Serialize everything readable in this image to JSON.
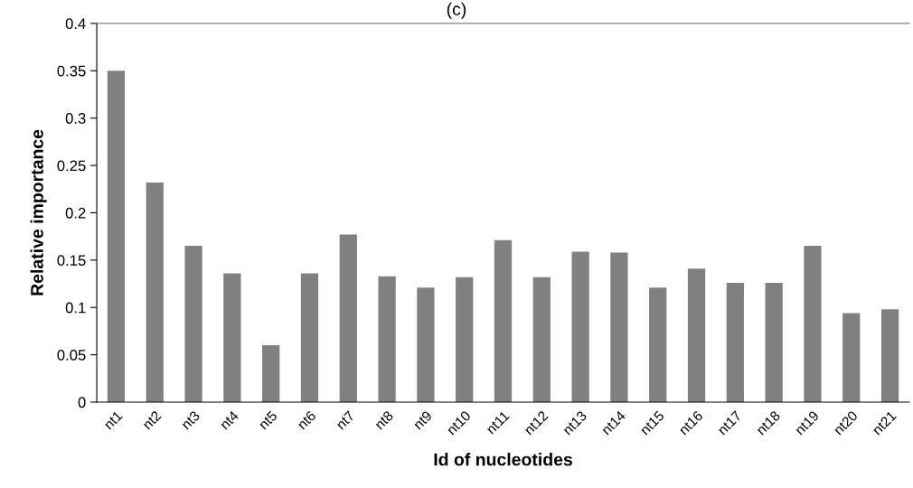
{
  "chart_data": {
    "type": "bar",
    "title": "(c)",
    "xlabel": "Id of nucleotides",
    "ylabel": "Relative importance",
    "categories": [
      "nt1",
      "nt2",
      "nt3",
      "nt4",
      "nt5",
      "nt6",
      "nt7",
      "nt8",
      "nt9",
      "nt10",
      "nt11",
      "nt12",
      "nt13",
      "nt14",
      "nt15",
      "nt16",
      "nt17",
      "nt18",
      "nt19",
      "nt20",
      "nt21"
    ],
    "values": [
      0.35,
      0.232,
      0.165,
      0.136,
      0.06,
      0.136,
      0.177,
      0.133,
      0.121,
      0.132,
      0.171,
      0.132,
      0.159,
      0.158,
      0.121,
      0.141,
      0.126,
      0.126,
      0.165,
      0.094,
      0.098
    ],
    "color": "#808080",
    "ylim": [
      0,
      0.4
    ],
    "yticks": [
      {
        "value": 0,
        "label": "0"
      },
      0.05,
      0.1,
      0.15,
      0.2,
      0.25,
      0.3,
      0.35,
      0.4
    ],
    "grid": false,
    "legend": false
  }
}
